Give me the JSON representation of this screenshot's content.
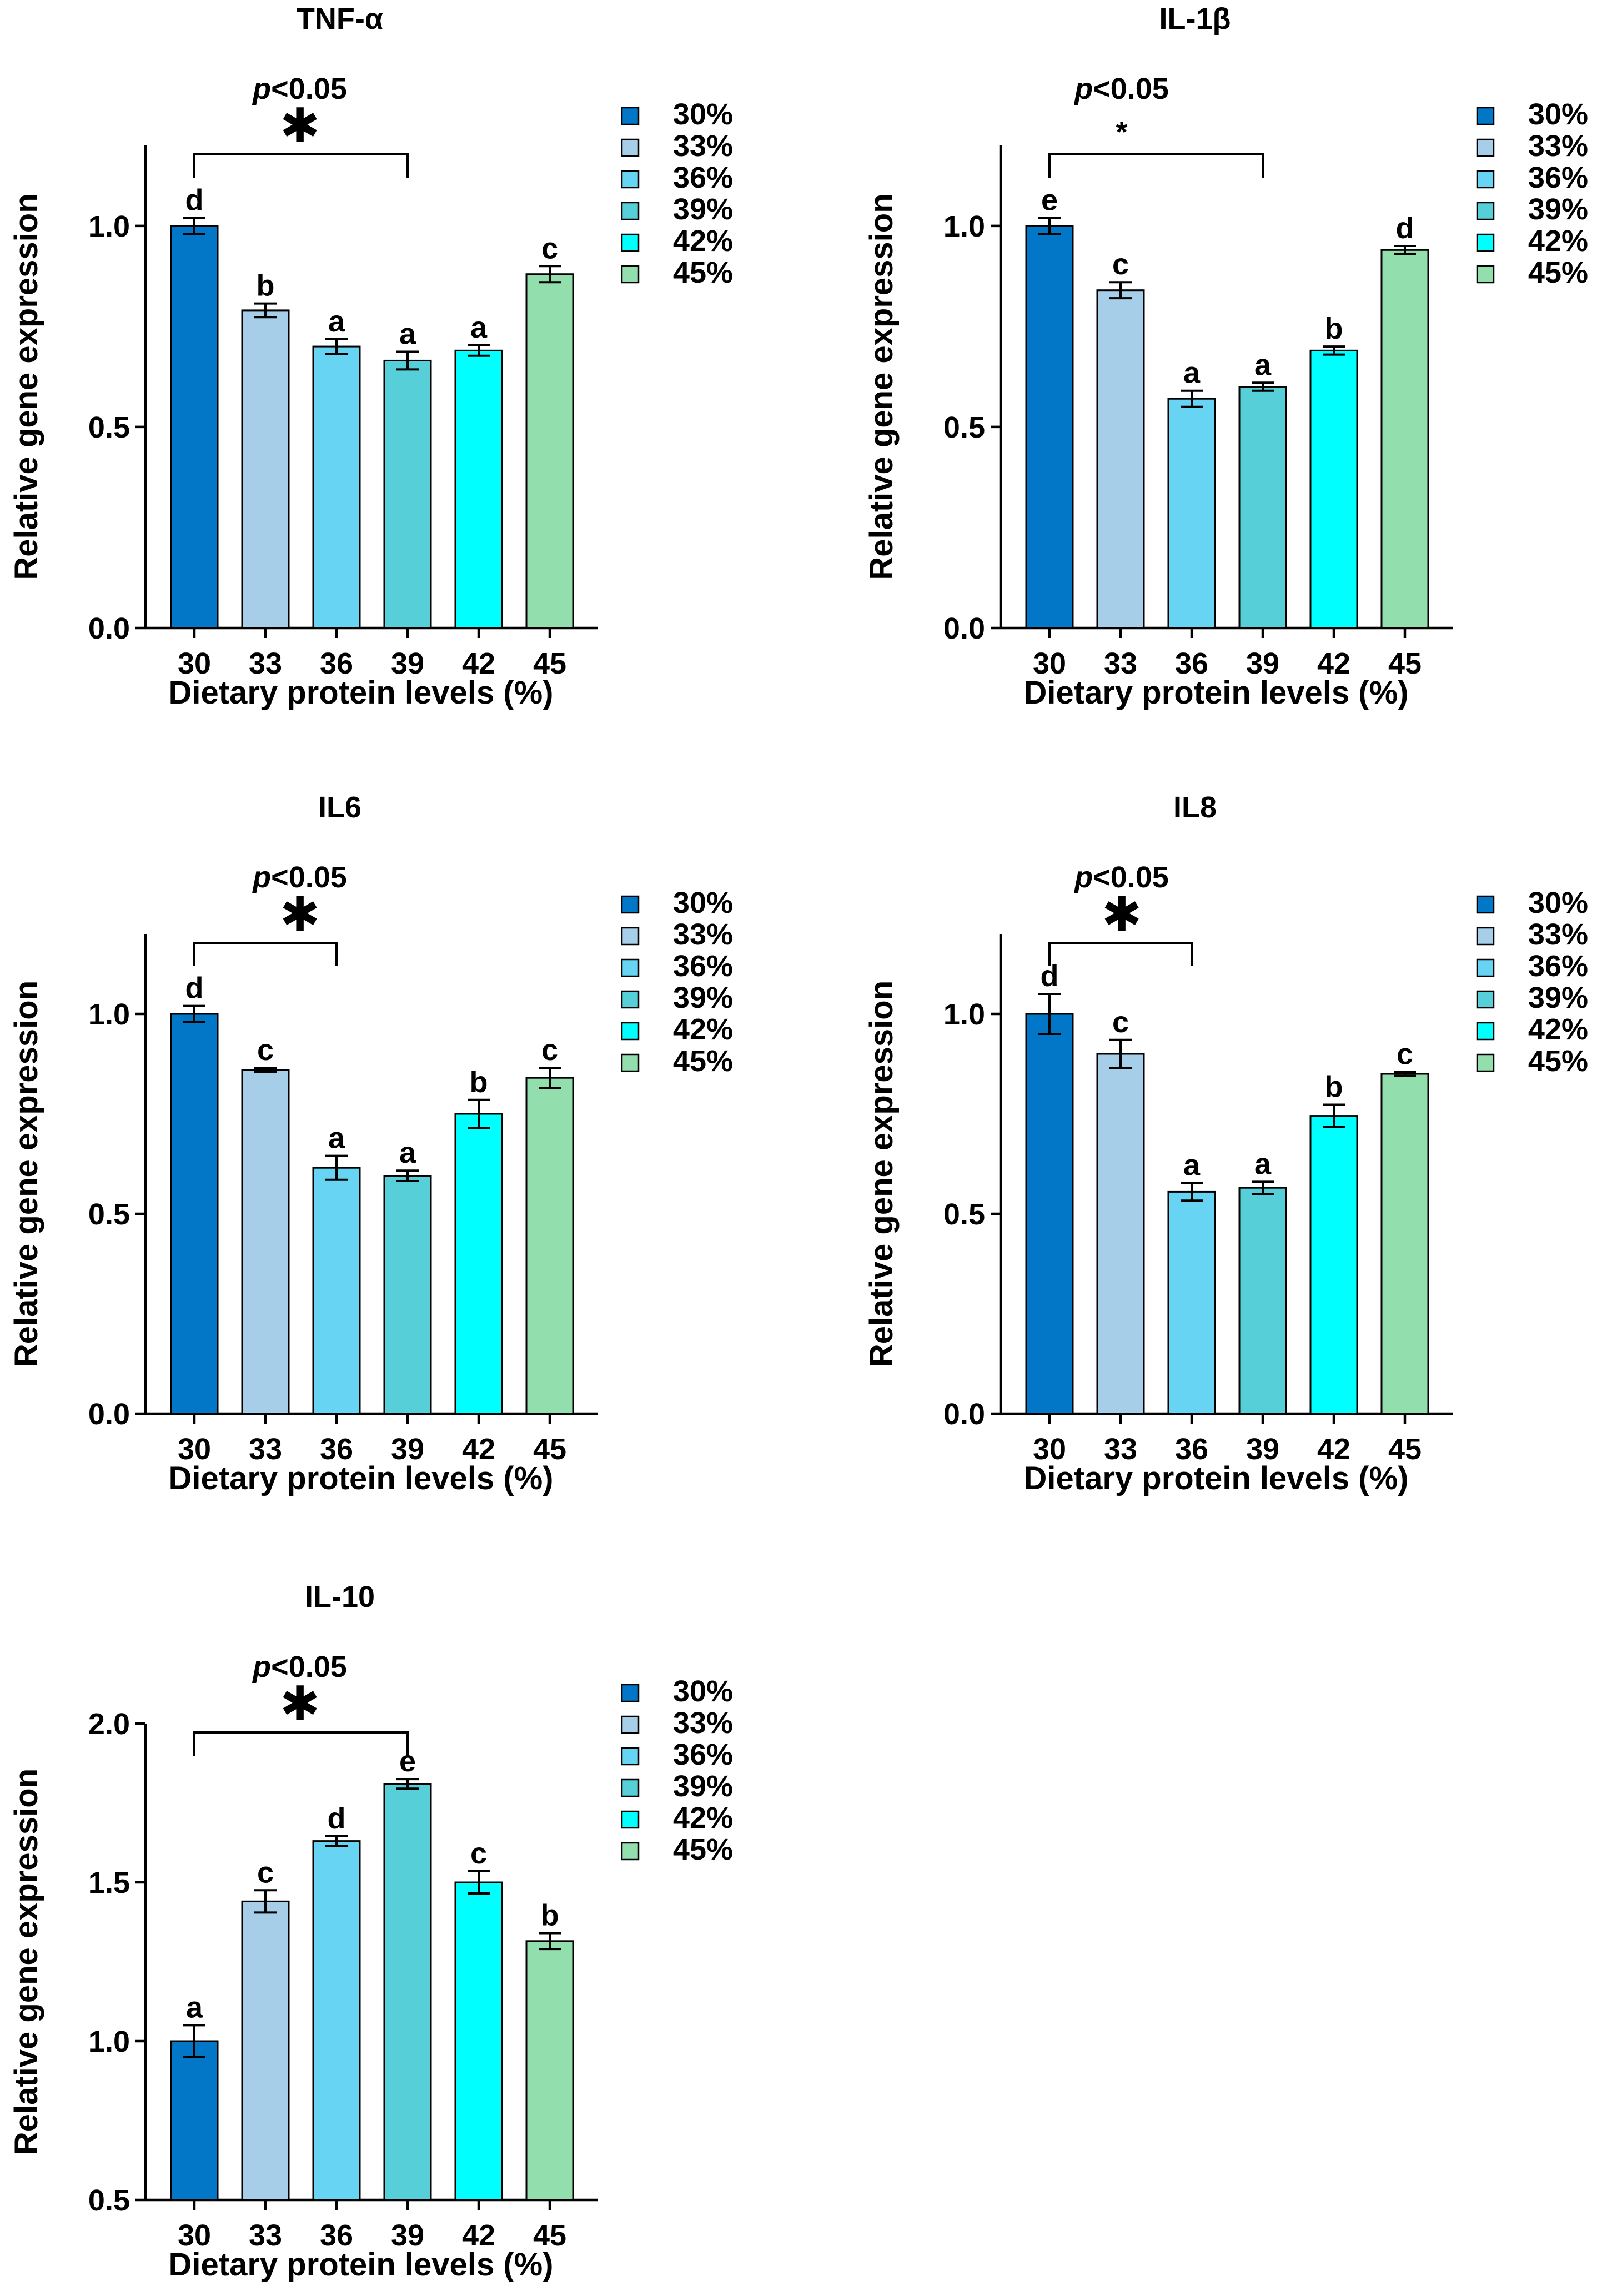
{
  "figure": {
    "shared": {
      "xlabel": "Dietary protein levels (%)",
      "ylabel": "Relative gene expression",
      "categories": [
        "30",
        "33",
        "36",
        "39",
        "42",
        "45"
      ],
      "legend": [
        "30%",
        "33%",
        "36%",
        "39%",
        "42%",
        "45%"
      ],
      "colors": [
        "#0277C7",
        "#A6CEE8",
        "#66D4F2",
        "#56CFD9",
        "#00FFFF",
        "#92DFAD"
      ]
    }
  },
  "chart_data": [
    {
      "type": "bar",
      "title": "TNF-α",
      "xlabel": "Dietary protein levels (%)",
      "ylabel": "Relative gene expression",
      "categories": [
        "30",
        "33",
        "36",
        "39",
        "42",
        "45"
      ],
      "values": [
        1.0,
        0.79,
        0.7,
        0.665,
        0.69,
        0.88
      ],
      "errors": [
        0.02,
        0.017,
        0.018,
        0.022,
        0.013,
        0.02
      ],
      "letters": [
        "d",
        "b",
        "a",
        "a",
        "a",
        "c"
      ],
      "ylim": [
        0,
        1.2
      ],
      "yticks": [
        "0.0",
        "0.5",
        "1.0"
      ],
      "ytick_values": [
        0,
        0.5,
        1.0
      ],
      "significance": {
        "label": "p<0.05",
        "label_italic": "p",
        "label_rest": "<0.05",
        "marker": "✱",
        "from": "30",
        "to": "39"
      },
      "legend": [
        "30%",
        "33%",
        "36%",
        "39%",
        "42%",
        "45%"
      ]
    },
    {
      "type": "bar",
      "title": "IL-1β",
      "xlabel": "Dietary protein levels (%)",
      "ylabel": "Relative gene expression",
      "categories": [
        "30",
        "33",
        "36",
        "39",
        "42",
        "45"
      ],
      "values": [
        1.0,
        0.84,
        0.57,
        0.6,
        0.69,
        0.94
      ],
      "errors": [
        0.02,
        0.02,
        0.02,
        0.01,
        0.01,
        0.01
      ],
      "letters": [
        "e",
        "c",
        "a",
        "a",
        "b",
        "d"
      ],
      "ylim": [
        0,
        1.2
      ],
      "yticks": [
        "0.0",
        "0.5",
        "1.0"
      ],
      "ytick_values": [
        0,
        0.5,
        1.0
      ],
      "significance": {
        "label": "p<0.05",
        "label_italic": "p",
        "label_rest": "<0.05",
        "marker": "*",
        "from": "30",
        "to": "39"
      },
      "legend": [
        "30%",
        "33%",
        "36%",
        "39%",
        "42%",
        "45%"
      ]
    },
    {
      "type": "bar",
      "title": "IL6",
      "xlabel": "Dietary protein levels (%)",
      "ylabel": "Relative gene expression",
      "categories": [
        "30",
        "33",
        "36",
        "39",
        "42",
        "45"
      ],
      "values": [
        1.0,
        0.86,
        0.615,
        0.595,
        0.75,
        0.84
      ],
      "errors": [
        0.02,
        0.005,
        0.03,
        0.013,
        0.035,
        0.025
      ],
      "letters": [
        "d",
        "c",
        "a",
        "a",
        "b",
        "c"
      ],
      "ylim": [
        0,
        1.2
      ],
      "yticks": [
        "0.0",
        "0.5",
        "1.0"
      ],
      "ytick_values": [
        0,
        0.5,
        1.0
      ],
      "significance": {
        "label": "p<0.05",
        "label_italic": "p",
        "label_rest": "<0.05",
        "marker": "✱",
        "from": "30",
        "to": "36"
      },
      "legend": [
        "30%",
        "33%",
        "36%",
        "39%",
        "42%",
        "45%"
      ]
    },
    {
      "type": "bar",
      "title": "IL8",
      "xlabel": "Dietary protein levels (%)",
      "ylabel": "Relative gene expression",
      "categories": [
        "30",
        "33",
        "36",
        "39",
        "42",
        "45"
      ],
      "values": [
        1.0,
        0.9,
        0.555,
        0.565,
        0.745,
        0.85
      ],
      "errors": [
        0.05,
        0.035,
        0.022,
        0.015,
        0.028,
        0.005
      ],
      "letters": [
        "d",
        "c",
        "a",
        "a",
        "b",
        "c"
      ],
      "ylim": [
        0,
        1.2
      ],
      "yticks": [
        "0.0",
        "0.5",
        "1.0"
      ],
      "ytick_values": [
        0,
        0.5,
        1.0
      ],
      "significance": {
        "label": "p<0.05",
        "label_italic": "p",
        "label_rest": "<0.05",
        "marker": "✱",
        "from": "30",
        "to": "36"
      },
      "legend": [
        "30%",
        "33%",
        "36%",
        "39%",
        "42%",
        "45%"
      ]
    },
    {
      "type": "bar",
      "title": "IL-10",
      "xlabel": "Dietary protein levels (%)",
      "ylabel": "Relative gene expression",
      "categories": [
        "30",
        "33",
        "36",
        "39",
        "42",
        "45"
      ],
      "values": [
        1.0,
        1.44,
        1.63,
        1.81,
        1.5,
        1.315
      ],
      "errors": [
        0.05,
        0.035,
        0.015,
        0.015,
        0.035,
        0.025
      ],
      "letters": [
        "a",
        "c",
        "d",
        "e",
        "c",
        "b"
      ],
      "ylim": [
        0.5,
        2.05
      ],
      "yticks": [
        "0.5",
        "1.0",
        "1.5",
        "2.0"
      ],
      "ytick_values": [
        0.5,
        1.0,
        1.5,
        2.0
      ],
      "significance": {
        "label": "p<0.05",
        "label_italic": "p",
        "label_rest": "<0.05",
        "marker": "✱",
        "from": "30",
        "to": "39"
      },
      "legend": [
        "30%",
        "33%",
        "36%",
        "39%",
        "42%",
        "45%"
      ]
    }
  ]
}
